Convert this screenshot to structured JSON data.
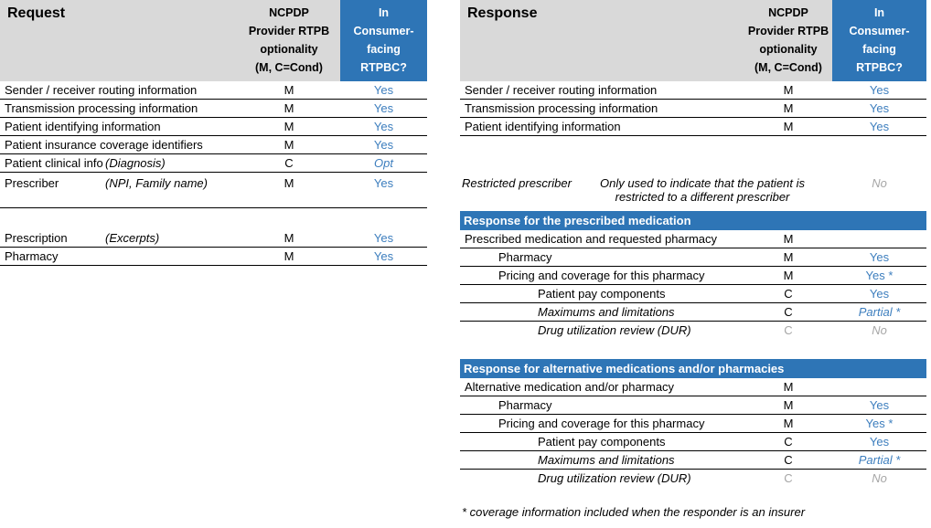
{
  "colors": {
    "header_blue": "#2E75B6",
    "value_blue": "#3D7EBE",
    "header_gray": "#D9D9D9",
    "muted_gray": "#A6A6A6"
  },
  "request_table": {
    "title": "Request",
    "opt_header_lines": [
      "NCPDP",
      "Provider RTPB",
      "optionality",
      "(M, C=Cond)"
    ],
    "val_header_lines": [
      "In",
      "Consumer-",
      "facing",
      "RTPBC?"
    ],
    "rows": [
      {
        "label": "Sender / receiver routing information",
        "opt": "M",
        "val": "Yes"
      },
      {
        "label": "Transmission processing information",
        "opt": "M",
        "val": "Yes"
      },
      {
        "label": "Patient identifying information",
        "opt": "M",
        "val": "Yes"
      },
      {
        "label": "Patient insurance coverage identifiers",
        "opt": "M",
        "val": "Yes"
      },
      {
        "label": "Patient clinical info",
        "note": "(Diagnosis)",
        "opt": "C",
        "val": "Opt"
      },
      {
        "label": "Prescriber",
        "note": "(NPI, Family name)",
        "opt": "M",
        "val": "Yes"
      },
      {
        "label": "Prescription",
        "note": "(Excerpts)",
        "opt": "M",
        "val": "Yes"
      },
      {
        "label": "Pharmacy",
        "opt": "M",
        "val": "Yes"
      }
    ]
  },
  "response_table": {
    "title": "Response",
    "opt_header_lines": [
      "NCPDP",
      "Provider RTPB",
      "optionality",
      "(M, C=Cond)"
    ],
    "val_header_lines": [
      "In",
      "Consumer-",
      "facing",
      "RTPBC?"
    ],
    "rows": [
      {
        "label": "Sender / receiver routing information",
        "opt": "M",
        "val": "Yes"
      },
      {
        "label": "Transmission processing information",
        "opt": "M",
        "val": "Yes"
      },
      {
        "label": "Patient identifying information",
        "opt": "M",
        "val": "Yes"
      }
    ],
    "restricted": {
      "label": "Restricted prescriber",
      "note_lines": [
        "Only used to indicate that the patient is",
        "restricted to a different prescriber"
      ],
      "val": "No"
    },
    "sections": [
      {
        "title": "Response for the prescribed medication",
        "rows": [
          {
            "label": "Prescribed medication and requested pharmacy",
            "opt": "M",
            "val": ""
          },
          {
            "label": "Pharmacy",
            "opt": "M",
            "val": "Yes"
          },
          {
            "label": "Pricing and coverage for this pharmacy",
            "opt": "M",
            "val": "Yes *"
          },
          {
            "label": "Patient pay components",
            "opt": "C",
            "val": "Yes"
          },
          {
            "label": "Maximums and limitations",
            "opt": "C",
            "val": "Partial *"
          },
          {
            "label": "Drug utilization review (DUR)",
            "opt": "C",
            "val": "No"
          }
        ]
      },
      {
        "title": "Response for alternative medications and/or pharmacies",
        "rows": [
          {
            "label": "Alternative medication and/or pharmacy",
            "opt": "M",
            "val": ""
          },
          {
            "label": "Pharmacy",
            "opt": "M",
            "val": "Yes"
          },
          {
            "label": "Pricing and coverage for this pharmacy",
            "opt": "M",
            "val": "Yes *"
          },
          {
            "label": "Patient pay components",
            "opt": "C",
            "val": "Yes"
          },
          {
            "label": "Maximums and limitations",
            "opt": "C",
            "val": "Partial *"
          },
          {
            "label": "Drug utilization review (DUR)",
            "opt": "C",
            "val": "No"
          }
        ]
      }
    ],
    "footnote": "* coverage information included when the responder is an insurer"
  }
}
